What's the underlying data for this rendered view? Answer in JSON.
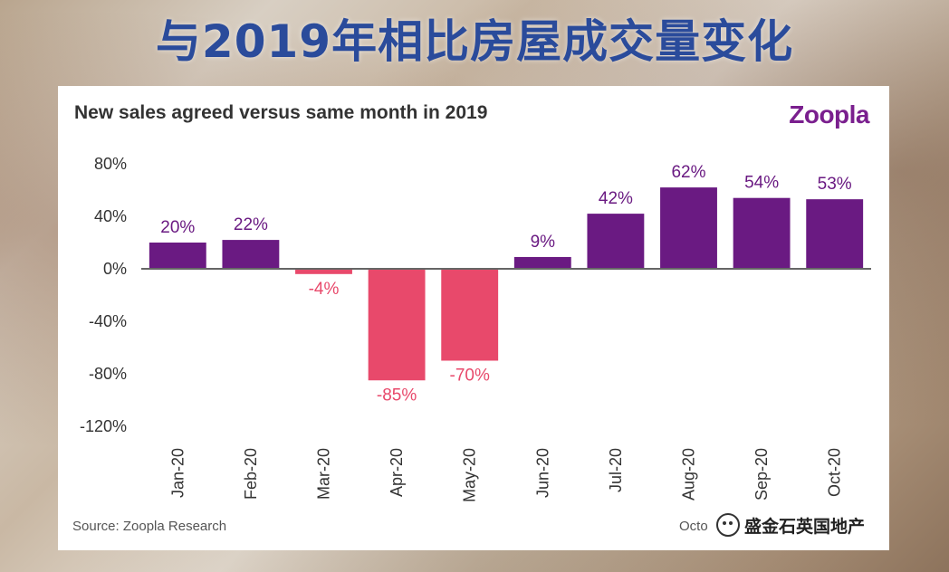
{
  "headline": "与2019年相比房屋成交量变化",
  "card": {
    "brand": "Zoopla",
    "source": "Source: Zoopla Research",
    "date_note": "Octo"
  },
  "watermark": "盛金石英国地产",
  "chart_data": {
    "type": "bar",
    "title": "New sales agreed versus same month in 2019",
    "categories": [
      "Jan-20",
      "Feb-20",
      "Mar-20",
      "Apr-20",
      "May-20",
      "Jun-20",
      "Jul-20",
      "Aug-20",
      "Sep-20",
      "Oct-20"
    ],
    "values": [
      20,
      22,
      -4,
      -85,
      -70,
      9,
      42,
      62,
      54,
      53
    ],
    "value_labels": [
      "20%",
      "22%",
      "-4%",
      "-85%",
      "-70%",
      "9%",
      "42%",
      "62%",
      "54%",
      "53%"
    ],
    "ylim": [
      -120,
      80
    ],
    "yticks": [
      80,
      40,
      0,
      -40,
      -80,
      -120
    ],
    "ytick_labels": [
      "80%",
      "40%",
      "0%",
      "-40%",
      "-80%",
      "-120%"
    ],
    "xlabel": "",
    "ylabel": "",
    "grid": false,
    "colors": {
      "positive": "#6a1a82",
      "negative": "#e8496b"
    }
  }
}
